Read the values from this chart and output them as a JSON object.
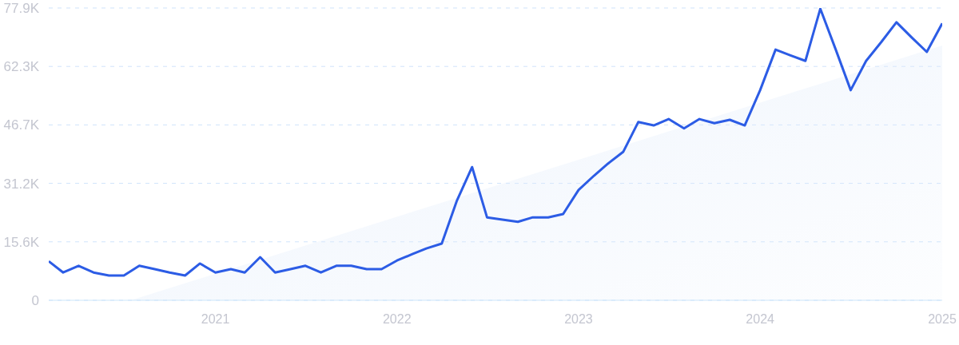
{
  "chart_data": {
    "type": "line",
    "x": [
      "2020-02",
      "2020-03",
      "2020-04",
      "2020-05",
      "2020-06",
      "2020-07",
      "2020-08",
      "2020-09",
      "2020-10",
      "2020-11",
      "2020-12",
      "2021-01",
      "2021-02",
      "2021-03",
      "2021-04",
      "2021-05",
      "2021-06",
      "2021-07",
      "2021-08",
      "2021-09",
      "2021-10",
      "2021-11",
      "2021-12",
      "2022-01",
      "2022-02",
      "2022-03",
      "2022-04",
      "2022-05",
      "2022-06",
      "2022-07",
      "2022-08",
      "2022-09",
      "2022-10",
      "2022-11",
      "2022-12",
      "2023-01",
      "2023-02",
      "2023-03",
      "2023-04",
      "2023-05",
      "2023-06",
      "2023-07",
      "2023-08",
      "2023-09",
      "2023-10",
      "2023-11",
      "2023-12",
      "2024-01",
      "2024-02",
      "2024-03",
      "2024-04",
      "2024-05",
      "2024-06",
      "2024-07",
      "2024-08",
      "2024-09",
      "2024-10",
      "2024-11",
      "2024-12",
      "2025-01"
    ],
    "series": [
      {
        "type": "area",
        "color": "#e3edfb",
        "x": [
          "2020-07-15",
          "2025-01"
        ],
        "values": [
          0,
          67900
        ]
      },
      {
        "color": "#2c5ce5",
        "values": [
          10400,
          7400,
          9200,
          7400,
          6600,
          6600,
          9200,
          8300,
          7400,
          6600,
          9800,
          7400,
          8300,
          7400,
          11500,
          7400,
          8300,
          9200,
          7400,
          9200,
          9200,
          8300,
          8300,
          10600,
          12300,
          13800,
          15100,
          26400,
          35500,
          22100,
          21500,
          20900,
          22100,
          22100,
          23000,
          29400,
          33200,
          36400,
          39600,
          47500,
          46600,
          48300,
          45800,
          48300,
          47200,
          48100,
          46600,
          56000,
          66800,
          65300,
          63800,
          77700,
          66800,
          56000,
          63800,
          68900,
          74100,
          70000,
          66200,
          73800
        ]
      }
    ],
    "xlim": [
      "2020-02",
      "2025-01"
    ],
    "xticks": [
      {
        "value": "2021",
        "label": "2021"
      },
      {
        "value": "2022",
        "label": "2022"
      },
      {
        "value": "2023",
        "label": "2023"
      },
      {
        "value": "2024",
        "label": "2024"
      },
      {
        "value": "2025",
        "label": "2025"
      }
    ],
    "ylim": [
      0,
      77900
    ],
    "yticks": [
      0,
      {
        "value": 15580,
        "label": "15.6K"
      },
      {
        "value": 31160,
        "label": "31.2K"
      },
      {
        "value": 46740,
        "label": "46.7K"
      },
      {
        "value": 62320,
        "label": "62.3K"
      },
      {
        "value": 77900,
        "label": "77.9K"
      }
    ],
    "grid": "y",
    "legend": false,
    "marker": "none",
    "line_style": "solid"
  }
}
